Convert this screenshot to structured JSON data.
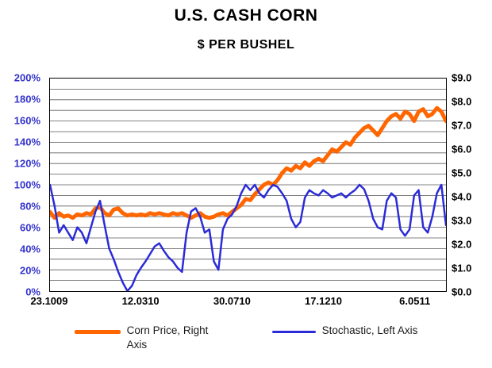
{
  "title": "U.S. CASH CORN",
  "subtitle": "$ PER BUSHEL",
  "colors": {
    "corn_price": "#FF6600",
    "stochastic": "#2B2BD9",
    "axis_left_text": "#3333CC",
    "grid": "#5a5a5a",
    "text": "#000000"
  },
  "left_axis_labels": [
    "200%",
    "180%",
    "160%",
    "140%",
    "120%",
    "100%",
    "80%",
    "60%",
    "40%",
    "20%",
    "0%"
  ],
  "right_axis_labels": [
    "$9.0",
    "$8.0",
    "$7.0",
    "$6.0",
    "$5.0",
    "$4.0",
    "$3.0",
    "$2.0",
    "$1.0",
    "$0.0"
  ],
  "legend": [
    {
      "label": "Corn Price, Right Axis",
      "color": "#FF6600"
    },
    {
      "label": "Stochastic, Left Axis",
      "color": "#2B2BD9"
    }
  ],
  "chart_data": {
    "type": "line",
    "title": "U.S. CASH CORN",
    "subtitle": "$ PER BUSHEL",
    "grid": true,
    "grid_divisions": 20,
    "legend_position": "bottom",
    "x_tick_labels": [
      "23.1009",
      "12.0310",
      "30.0710",
      "17.1210",
      "6.0511"
    ],
    "x_tick_indices": [
      0,
      20,
      40,
      60,
      80
    ],
    "left_axis": {
      "min": 0,
      "max": 200,
      "step": 20,
      "unit": "%"
    },
    "right_axis": {
      "min": 0,
      "max": 9,
      "step": 1,
      "unit": "$"
    },
    "series": [
      {
        "name": "Corn Price, Right Axis",
        "axis": "right",
        "color": "#FF6600",
        "width": 5,
        "values": [
          3.35,
          3.1,
          3.3,
          3.15,
          3.2,
          3.1,
          3.25,
          3.2,
          3.3,
          3.25,
          3.5,
          3.55,
          3.3,
          3.2,
          3.45,
          3.5,
          3.3,
          3.2,
          3.25,
          3.2,
          3.25,
          3.2,
          3.3,
          3.25,
          3.3,
          3.25,
          3.2,
          3.3,
          3.25,
          3.3,
          3.2,
          3.1,
          3.2,
          3.3,
          3.15,
          3.1,
          3.15,
          3.25,
          3.3,
          3.2,
          3.35,
          3.5,
          3.65,
          3.9,
          3.85,
          4.1,
          4.3,
          4.5,
          4.6,
          4.5,
          4.7,
          5.0,
          5.2,
          5.1,
          5.3,
          5.2,
          5.45,
          5.3,
          5.5,
          5.6,
          5.5,
          5.75,
          6.0,
          5.9,
          6.1,
          6.3,
          6.2,
          6.5,
          6.7,
          6.9,
          7.0,
          6.8,
          6.6,
          6.9,
          7.2,
          7.4,
          7.5,
          7.3,
          7.6,
          7.5,
          7.2,
          7.6,
          7.7,
          7.4,
          7.5,
          7.75,
          7.6,
          7.2
        ]
      },
      {
        "name": "Stochastic, Left Axis",
        "axis": "left",
        "color": "#2B2BD9",
        "width": 2.5,
        "values": [
          100,
          80,
          55,
          62,
          55,
          48,
          60,
          55,
          45,
          60,
          75,
          85,
          62,
          40,
          30,
          18,
          8,
          0,
          5,
          15,
          22,
          28,
          35,
          42,
          45,
          38,
          32,
          28,
          22,
          18,
          55,
          75,
          78,
          70,
          55,
          58,
          28,
          20,
          58,
          68,
          72,
          80,
          92,
          100,
          95,
          100,
          92,
          88,
          95,
          100,
          98,
          92,
          85,
          68,
          60,
          65,
          88,
          95,
          92,
          90,
          95,
          92,
          88,
          90,
          92,
          88,
          92,
          95,
          100,
          96,
          85,
          68,
          60,
          58,
          85,
          92,
          88,
          58,
          52,
          58,
          90,
          95,
          60,
          55,
          70,
          92,
          100,
          62
        ]
      }
    ]
  }
}
